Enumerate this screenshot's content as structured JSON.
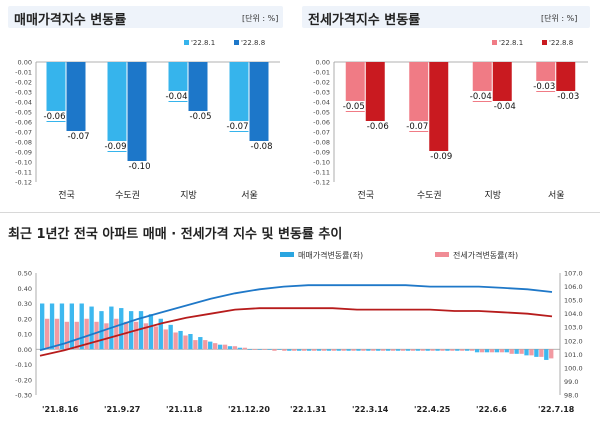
{
  "chart_data": [
    {
      "type": "bar",
      "title": "매매가격지수 변동률",
      "unit": "[단위 : %]",
      "categories": [
        "전국",
        "수도권",
        "지방",
        "서울"
      ],
      "series": [
        {
          "name": "'22.8.1",
          "values": [
            -0.06,
            -0.09,
            -0.04,
            -0.07
          ],
          "color": "#36b4ec"
        },
        {
          "name": "'22.8.8",
          "values": [
            -0.07,
            -0.1,
            -0.05,
            -0.08
          ],
          "color": "#1d77c9"
        }
      ],
      "value_labels": [
        [
          "-0.06",
          "-0.09",
          "-0.04",
          "-0.07"
        ],
        [
          "-0.07",
          "-0.10",
          "-0.05",
          "-0.08"
        ]
      ],
      "yticks": [
        "0.00",
        "-0.01",
        "-0.02",
        "-0.03",
        "-0.04",
        "-0.05",
        "-0.06",
        "-0.07",
        "-0.08",
        "-0.09",
        "-0.10",
        "-0.11",
        "-0.12"
      ],
      "ylim": [
        -0.12,
        0
      ],
      "legend": "top-right"
    },
    {
      "type": "bar",
      "title": "전세가격지수 변동률",
      "unit": "[단위 : %]",
      "categories": [
        "전국",
        "수도권",
        "지방",
        "서울"
      ],
      "series": [
        {
          "name": "'22.8.1",
          "values": [
            -0.05,
            -0.07,
            -0.04,
            -0.03
          ],
          "color": "#f07b85"
        },
        {
          "name": "'22.8.8",
          "values": [
            -0.06,
            -0.09,
            -0.04,
            -0.03
          ],
          "color": "#c91a20"
        }
      ],
      "value_labels": [
        [
          "-0.05",
          "-0.07",
          "-0.04",
          "-0.03"
        ],
        [
          "-0.06",
          "-0.09",
          "-0.04",
          "-0.03"
        ]
      ],
      "yticks": [
        "0.00",
        "-0.01",
        "-0.02",
        "-0.03",
        "-0.04",
        "-0.05",
        "-0.06",
        "-0.07",
        "-0.08",
        "-0.09",
        "-0.10",
        "-0.11",
        "-0.12"
      ],
      "ylim": [
        -0.12,
        0
      ],
      "legend": "top-right"
    },
    {
      "type": "bar+line",
      "title": "최근 1년간 전국 아파트 매매 · 전세가격 지수 및 변동률 추이",
      "x_labels": [
        "'21.8.16",
        "'21.9.27",
        "'21.11.8",
        "'21.12.20",
        "'22.1.31",
        "'22.3.14",
        "'22.4.25",
        "'22.6.6",
        "'22.7.18"
      ],
      "left_axis": {
        "ticks": [
          "0.50",
          "0.40",
          "0.30",
          "0.20",
          "0.10",
          "0.00",
          "-0.10",
          "-0.20",
          "-0.30"
        ],
        "ylim": [
          -0.3,
          0.5
        ]
      },
      "right_axis": {
        "ticks": [
          "107.0",
          "106.0",
          "105.0",
          "104.0",
          "103.0",
          "102.0",
          "101.0",
          "100.0",
          "99.0",
          "98.0"
        ],
        "ylim": [
          98.0,
          107.0
        ]
      },
      "legend": [
        {
          "name": "매매가격변동률(좌)",
          "color": "#2aa5e0"
        },
        {
          "name": "전세가격변동률(좌)",
          "color": "#f08c95"
        }
      ],
      "legend_placement": "top",
      "series": [
        {
          "name": "매매가격변동률(좌)",
          "kind": "bar",
          "color": "#3db8ef",
          "values": [
            0.3,
            0.3,
            0.3,
            0.3,
            0.3,
            0.28,
            0.25,
            0.28,
            0.27,
            0.25,
            0.25,
            0.23,
            0.2,
            0.16,
            0.12,
            0.1,
            0.08,
            0.05,
            0.03,
            0.02,
            0.01,
            0.0,
            0.0,
            0.0,
            0.0,
            -0.01,
            -0.01,
            -0.01,
            -0.01,
            -0.01,
            -0.01,
            -0.01,
            -0.01,
            -0.01,
            -0.01,
            -0.01,
            -0.01,
            -0.01,
            -0.01,
            -0.01,
            -0.01,
            -0.01,
            -0.01,
            -0.01,
            -0.02,
            -0.02,
            -0.02,
            -0.02,
            -0.03,
            -0.04,
            -0.05,
            -0.07
          ]
        },
        {
          "name": "전세가격변동률(좌)",
          "kind": "bar",
          "color": "#f29aa2",
          "values": [
            0.2,
            0.2,
            0.18,
            0.18,
            0.2,
            0.18,
            0.17,
            0.2,
            0.18,
            0.18,
            0.17,
            0.15,
            0.13,
            0.11,
            0.09,
            0.06,
            0.06,
            0.04,
            0.03,
            0.02,
            0.01,
            0.0,
            0.0,
            -0.01,
            -0.01,
            -0.01,
            -0.01,
            -0.01,
            -0.01,
            -0.01,
            -0.01,
            -0.01,
            -0.01,
            -0.01,
            -0.01,
            -0.01,
            -0.01,
            -0.01,
            -0.01,
            -0.01,
            -0.01,
            -0.01,
            -0.01,
            -0.01,
            -0.02,
            -0.02,
            -0.02,
            -0.03,
            -0.03,
            -0.04,
            -0.05,
            -0.06
          ]
        },
        {
          "name": "매매가격지수(우)",
          "kind": "line",
          "axis": "right",
          "color": "#1f78c8",
          "values": [
            101.3,
            101.8,
            102.4,
            103.0,
            103.6,
            104.1,
            104.6,
            105.1,
            105.5,
            105.8,
            106.0,
            106.1,
            106.1,
            106.1,
            106.1,
            106.1,
            106.0,
            106.0,
            106.0,
            105.9,
            105.8,
            105.6
          ]
        },
        {
          "name": "전세가격지수(우)",
          "kind": "line",
          "axis": "right",
          "color": "#b71c1c",
          "values": [
            100.9,
            101.3,
            101.8,
            102.3,
            102.8,
            103.3,
            103.7,
            104.0,
            104.3,
            104.4,
            104.4,
            104.4,
            104.4,
            104.3,
            104.3,
            104.3,
            104.3,
            104.2,
            104.2,
            104.1,
            104.0,
            103.8
          ]
        }
      ]
    }
  ]
}
